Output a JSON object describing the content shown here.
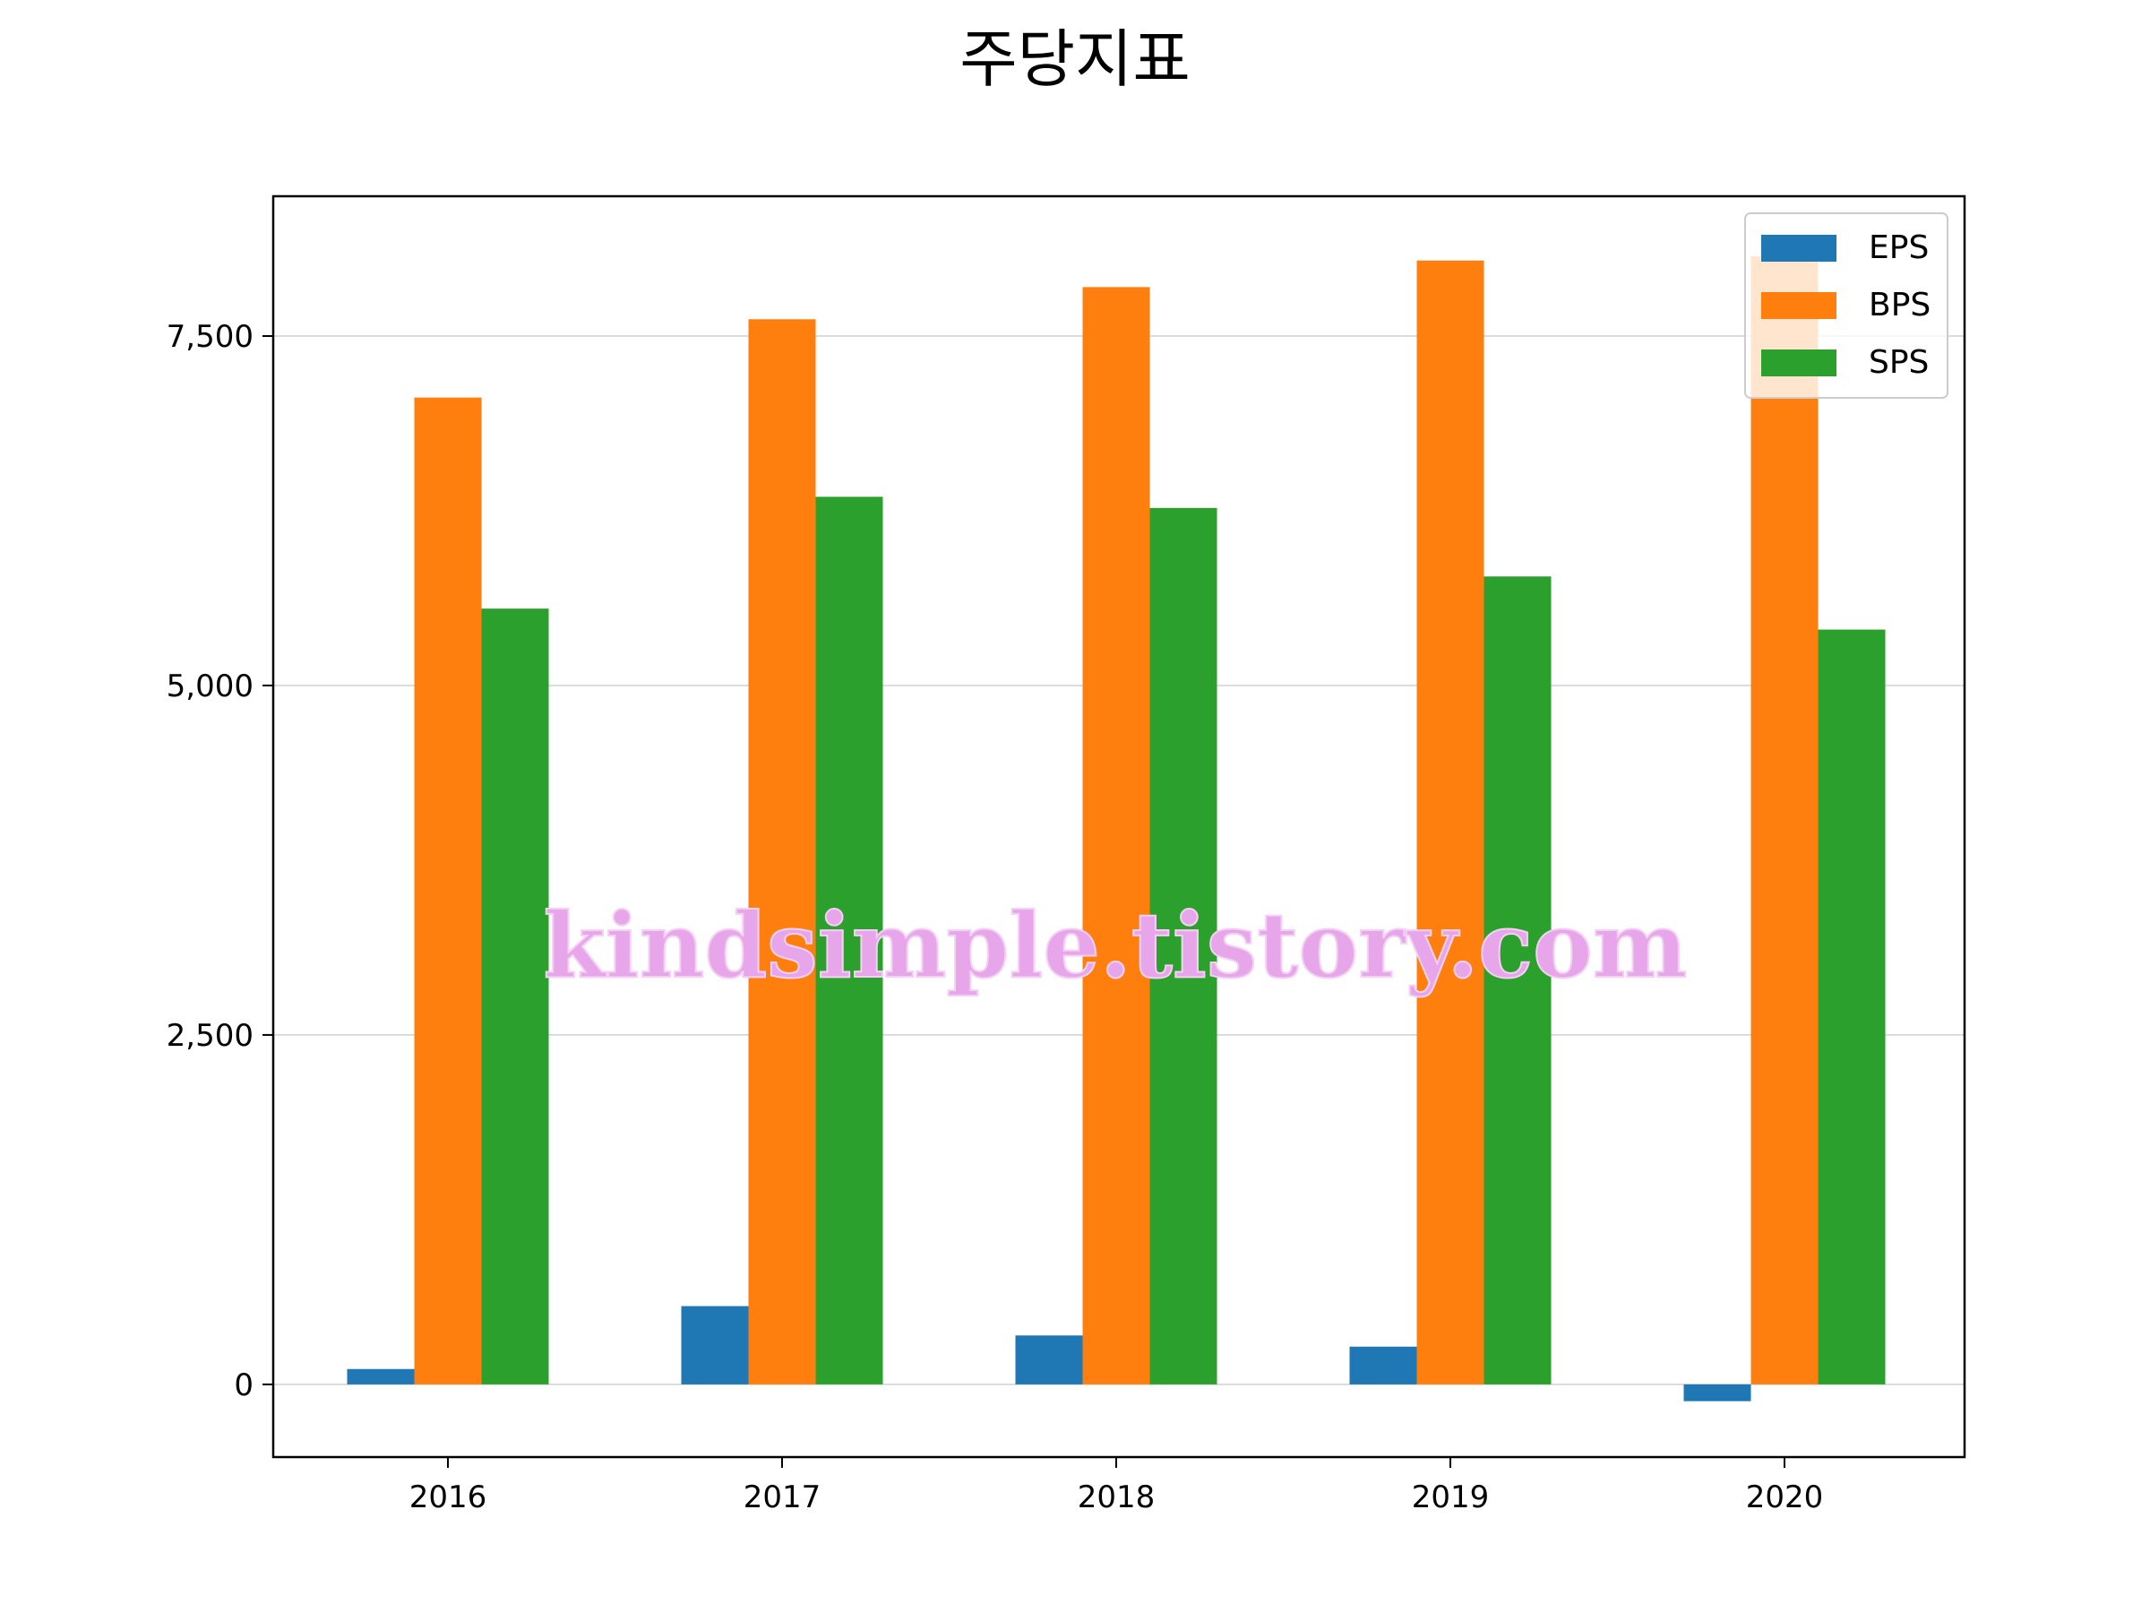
{
  "chart_data": {
    "type": "bar",
    "title": "주당지표",
    "categories": [
      "2016",
      "2017",
      "2018",
      "2019",
      "2020"
    ],
    "series": [
      {
        "name": "EPS",
        "values": [
          110,
          560,
          350,
          270,
          -120
        ],
        "color": "#1f77b4"
      },
      {
        "name": "BPS",
        "values": [
          7060,
          7620,
          7850,
          8040,
          8070
        ],
        "color": "#ff7f0e"
      },
      {
        "name": "SPS",
        "values": [
          5550,
          6350,
          6270,
          5780,
          5400
        ],
        "color": "#2ca02c"
      }
    ],
    "xlabel": "",
    "ylabel": "",
    "ylim": [
      -520,
      8500
    ],
    "yticks": [
      0,
      2500,
      5000,
      7500
    ],
    "ytick_labels": [
      "0",
      "2,500",
      "5,000",
      "7,500"
    ],
    "grid": "horizontal",
    "legend": "top-right"
  },
  "watermark": "kindsimple.tistory.com"
}
